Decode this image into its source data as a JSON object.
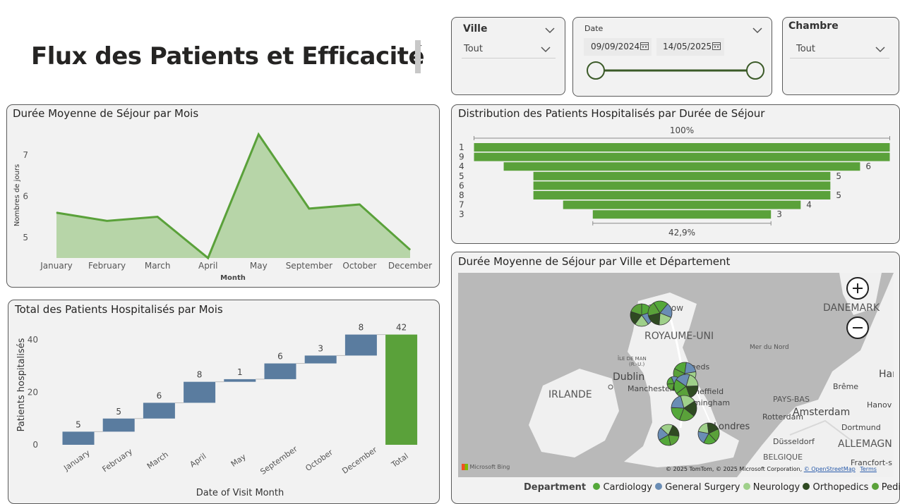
{
  "page_title": "Flux des Patients et Efficacité",
  "colors": {
    "green": "#5aa13a",
    "green_fill": "#b7d5a8",
    "blue": "#5a7c9f",
    "cardiology": "#54a83a",
    "general_surgery": "#6a8db5",
    "neurology": "#9fd08a",
    "orthopedics": "#2f4a22",
    "pediatrics": "#5aa13a"
  },
  "slicers": {
    "ville": {
      "label": "Ville",
      "value": "Tout"
    },
    "date": {
      "label": "Date",
      "start": "09/09/2024",
      "end": "14/05/2025",
      "start_fraction": 0,
      "end_fraction": 1
    },
    "chambre": {
      "label": "Chambre",
      "value": "Tout"
    }
  },
  "area_chart": {
    "title": "Durée Moyenne de Séjour par Mois",
    "xlabel": "Month",
    "ylabel": "Nombres de jours"
  },
  "waterfall": {
    "title": "Total des Patients Hospitalisés par Mois",
    "xlabel": "Date of Visit Month",
    "ylabel": "Patients hospitalisés"
  },
  "funnel": {
    "title": "Distribution des Patients Hospitalisés par Durée de Séjour",
    "top_label": "100%",
    "bottom_label": "42,9%"
  },
  "map": {
    "title": "Durée Moyenne de Séjour par Ville et Département",
    "places": {
      "glasgow": "Glasgow",
      "uk": "ROYAUME-UNI",
      "denmark": "DANEMARK",
      "sea": "Mer du Nord",
      "isle_of_man_1": "ÎLE DE MAN",
      "isle_of_man_2": "(R.-U.)",
      "dublin": "Dublin",
      "ireland": "IRLANDE",
      "manchester": "Manchester",
      "leeds": "Leeds",
      "sheffield": "Sheffield",
      "birmingham": "Birmingham",
      "london": "Londres",
      "rotterdam": "Rotterdam",
      "amsterdam": "Amsterdam",
      "netherlands": "PAYS-BAS",
      "dusseldorf": "Düsseldorf",
      "dortmund": "Dortmund",
      "bremen": "Brême",
      "hanover": "Hanov",
      "hamburg": "Ham",
      "germany": "ALLEMAGN",
      "belgium": "BELGIQUE",
      "frankfurt": "Francfort-s"
    },
    "bing": "Microsoft Bing",
    "copyright": "© 2025 TomTom, © 2025 Microsoft Corporation,",
    "osm": "© OpenStreetMap",
    "terms": "Terms",
    "legend_title": "Department",
    "legend": [
      "Cardiology",
      "General Surgery",
      "Neurology",
      "Orthopedics",
      "Pediatrics"
    ]
  },
  "chart_data": [
    {
      "type": "area",
      "title": "Durée Moyenne de Séjour par Mois",
      "xlabel": "Month",
      "ylabel": "Nombres de jours",
      "categories": [
        "January",
        "February",
        "March",
        "April",
        "May",
        "September",
        "October",
        "December"
      ],
      "values": [
        5.6,
        5.4,
        5.5,
        4.5,
        7.5,
        5.7,
        5.8,
        4.7
      ],
      "yticks": [
        5,
        6,
        7
      ],
      "ylim": [
        4.5,
        7.7
      ],
      "grid": false
    },
    {
      "type": "bar",
      "subtype": "waterfall",
      "title": "Total des Patients Hospitalisés par Mois",
      "xlabel": "Date of Visit Month",
      "ylabel": "Patients hospitalisés",
      "categories": [
        "January",
        "February",
        "March",
        "April",
        "May",
        "September",
        "October",
        "December",
        "Total"
      ],
      "values": [
        5,
        5,
        6,
        8,
        1,
        6,
        3,
        8,
        42
      ],
      "yticks": [
        0,
        20,
        40
      ],
      "ylim": [
        0,
        47
      ]
    },
    {
      "type": "bar",
      "subtype": "funnel",
      "title": "Distribution des Patients Hospitalisés par Durée de Séjour",
      "categories": [
        "1",
        "9",
        "4",
        "5",
        "6",
        "8",
        "7",
        "3"
      ],
      "values": [
        7,
        7,
        6,
        5,
        5,
        5,
        4,
        3
      ],
      "value_labels": [
        "",
        "",
        "6",
        "5",
        "",
        "5",
        "4",
        "3"
      ]
    }
  ]
}
